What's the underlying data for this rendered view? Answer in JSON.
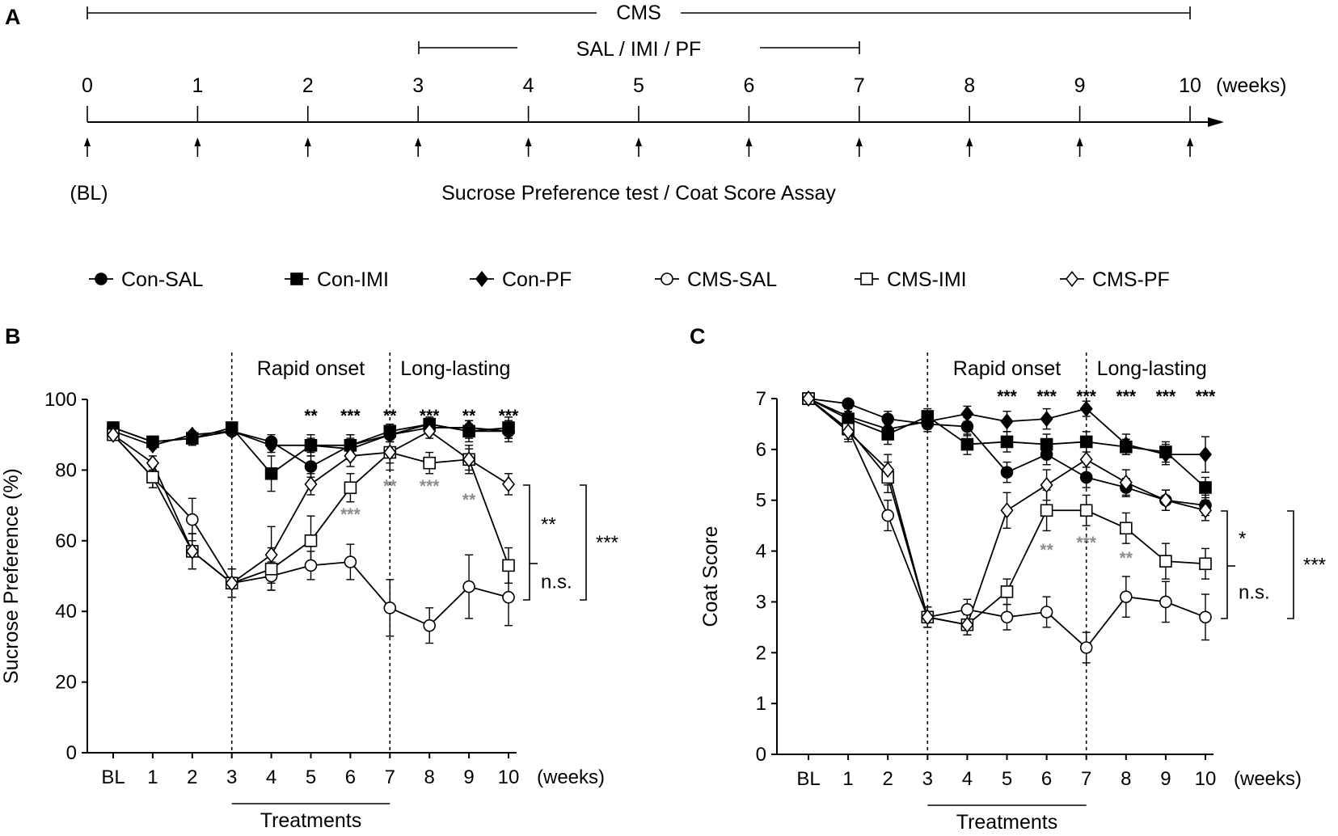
{
  "panel_a": {
    "letter": "A",
    "cms_label": "CMS",
    "treatment_label": "SAL / IMI / PF",
    "ticks": [
      "0",
      "1",
      "2",
      "3",
      "4",
      "5",
      "6",
      "7",
      "8",
      "9",
      "10"
    ],
    "unit": "(weeks)",
    "bl_label": "(BL)",
    "assay_label": "Sucrose Preference test / Coat Score Assay"
  },
  "legend": [
    {
      "name": "Con-SAL",
      "marker": "circle",
      "filled": true
    },
    {
      "name": "Con-IMI",
      "marker": "square",
      "filled": true
    },
    {
      "name": "Con-PF",
      "marker": "diamond",
      "filled": true
    },
    {
      "name": "CMS-SAL",
      "marker": "circle",
      "filled": false
    },
    {
      "name": "CMS-IMI",
      "marker": "square",
      "filled": false
    },
    {
      "name": "CMS-PF",
      "marker": "diamond",
      "filled": false
    }
  ],
  "chart_data": [
    {
      "type": "line",
      "panel": "B",
      "title": "",
      "xlabel": "(weeks)",
      "ylabel": "Sucrose Preference (%)",
      "categories": [
        "BL",
        "1",
        "2",
        "3",
        "4",
        "5",
        "6",
        "7",
        "8",
        "9",
        "10"
      ],
      "ylim": [
        0,
        100
      ],
      "yticks": [
        "0",
        "20",
        "40",
        "60",
        "80",
        "100"
      ],
      "treatments_label": "Treatments",
      "phase_labels": [
        "Rapid onset",
        "Long-lasting"
      ],
      "series": [
        {
          "name": "Con-SAL",
          "values": [
            92,
            88,
            89,
            91,
            88,
            81,
            87,
            90,
            93,
            91,
            91
          ],
          "errors": [
            1,
            1,
            1,
            1,
            2,
            3,
            3,
            2,
            1,
            2,
            3
          ]
        },
        {
          "name": "Con-IMI",
          "values": [
            92,
            88,
            89,
            92,
            79,
            87,
            87,
            91,
            93,
            91,
            92
          ],
          "errors": [
            1,
            1,
            2,
            1,
            5,
            3,
            3,
            2,
            2,
            3,
            3
          ]
        },
        {
          "name": "Con-PF",
          "values": [
            91,
            87,
            90,
            91,
            87,
            87,
            86,
            90,
            92,
            92,
            91
          ],
          "errors": [
            1,
            1,
            1,
            1,
            2,
            2,
            3,
            2,
            1,
            2,
            2
          ]
        },
        {
          "name": "CMS-SAL",
          "values": [
            90,
            78,
            66,
            48,
            50,
            53,
            54,
            41,
            36,
            47,
            44
          ],
          "errors": [
            1,
            3,
            6,
            4,
            4,
            4,
            5,
            8,
            5,
            9,
            8
          ]
        },
        {
          "name": "CMS-IMI",
          "values": [
            90,
            78,
            57,
            48,
            52,
            60,
            75,
            85,
            82,
            83,
            53
          ],
          "errors": [
            1,
            3,
            5,
            4,
            6,
            7,
            4,
            5,
            3,
            4,
            5
          ]
        },
        {
          "name": "CMS-PF",
          "values": [
            90,
            82,
            57,
            48,
            56,
            76,
            84,
            85,
            91,
            83,
            76
          ],
          "errors": [
            1,
            2,
            5,
            4,
            8,
            3,
            3,
            3,
            2,
            3,
            3
          ]
        }
      ],
      "significance_top": [
        {
          "week": "5",
          "label": "**"
        },
        {
          "week": "6",
          "label": "***"
        },
        {
          "week": "7",
          "label": "**"
        },
        {
          "week": "8",
          "label": "***"
        },
        {
          "week": "9",
          "label": "**"
        },
        {
          "week": "10",
          "label": "***"
        }
      ],
      "significance_gray": [
        {
          "week": "6",
          "label": "***"
        },
        {
          "week": "7",
          "label": "**"
        },
        {
          "week": "8",
          "label": "***"
        },
        {
          "week": "9",
          "label": "**"
        }
      ],
      "brackets": [
        {
          "label": "**"
        },
        {
          "label": "n.s."
        },
        {
          "label": "***"
        }
      ]
    },
    {
      "type": "line",
      "panel": "C",
      "title": "",
      "xlabel": "(weeks)",
      "ylabel": "Coat Score",
      "categories": [
        "BL",
        "1",
        "2",
        "3",
        "4",
        "5",
        "6",
        "7",
        "8",
        "9",
        "10"
      ],
      "ylim": [
        0,
        7
      ],
      "yticks": [
        "0",
        "1",
        "2",
        "3",
        "4",
        "5",
        "6",
        "7"
      ],
      "treatments_label": "Treatments",
      "phase_labels": [
        "Rapid onset",
        "Long-lasting"
      ],
      "series": [
        {
          "name": "Con-SAL",
          "values": [
            7.0,
            6.9,
            6.6,
            6.5,
            6.45,
            5.55,
            5.9,
            5.45,
            5.25,
            5.0,
            4.9
          ],
          "errors": [
            0.05,
            0.08,
            0.15,
            0.15,
            0.18,
            0.2,
            0.2,
            0.2,
            0.18,
            0.2,
            0.2
          ]
        },
        {
          "name": "Con-IMI",
          "values": [
            7.0,
            6.6,
            6.3,
            6.65,
            6.1,
            6.15,
            6.1,
            6.15,
            6.05,
            5.95,
            5.25
          ],
          "errors": [
            0.05,
            0.15,
            0.2,
            0.15,
            0.2,
            0.2,
            0.2,
            0.2,
            0.15,
            0.2,
            0.2
          ]
        },
        {
          "name": "Con-PF",
          "values": [
            7.0,
            6.65,
            6.4,
            6.55,
            6.7,
            6.55,
            6.6,
            6.8,
            6.1,
            5.9,
            5.9
          ],
          "errors": [
            0.05,
            0.15,
            0.2,
            0.15,
            0.15,
            0.2,
            0.2,
            0.15,
            0.2,
            0.2,
            0.35
          ]
        },
        {
          "name": "CMS-SAL",
          "values": [
            7.0,
            6.4,
            4.7,
            2.7,
            2.85,
            2.7,
            2.8,
            2.1,
            3.1,
            3.0,
            2.7
          ],
          "errors": [
            0.05,
            0.2,
            0.3,
            0.2,
            0.2,
            0.25,
            0.3,
            0.3,
            0.4,
            0.4,
            0.45
          ]
        },
        {
          "name": "CMS-IMI",
          "values": [
            7.0,
            6.4,
            5.45,
            2.7,
            2.55,
            3.2,
            4.8,
            4.8,
            4.45,
            3.8,
            3.75
          ],
          "errors": [
            0.05,
            0.2,
            0.3,
            0.2,
            0.2,
            0.25,
            0.4,
            0.3,
            0.3,
            0.35,
            0.3
          ]
        },
        {
          "name": "CMS-PF",
          "values": [
            7.0,
            6.35,
            5.6,
            2.7,
            2.55,
            4.8,
            5.3,
            5.8,
            5.35,
            5.0,
            4.8
          ],
          "errors": [
            0.05,
            0.2,
            0.3,
            0.2,
            0.2,
            0.35,
            0.3,
            0.3,
            0.25,
            0.2,
            0.2
          ]
        }
      ],
      "significance_top": [
        {
          "week": "5",
          "label": "***"
        },
        {
          "week": "6",
          "label": "***"
        },
        {
          "week": "7",
          "label": "***"
        },
        {
          "week": "8",
          "label": "***"
        },
        {
          "week": "9",
          "label": "***"
        },
        {
          "week": "10",
          "label": "***"
        }
      ],
      "significance_gray": [
        {
          "week": "6",
          "label": "**"
        },
        {
          "week": "7",
          "label": "***"
        },
        {
          "week": "8",
          "label": "**"
        }
      ],
      "brackets": [
        {
          "label": "*"
        },
        {
          "label": "n.s."
        },
        {
          "label": "***"
        }
      ]
    }
  ]
}
